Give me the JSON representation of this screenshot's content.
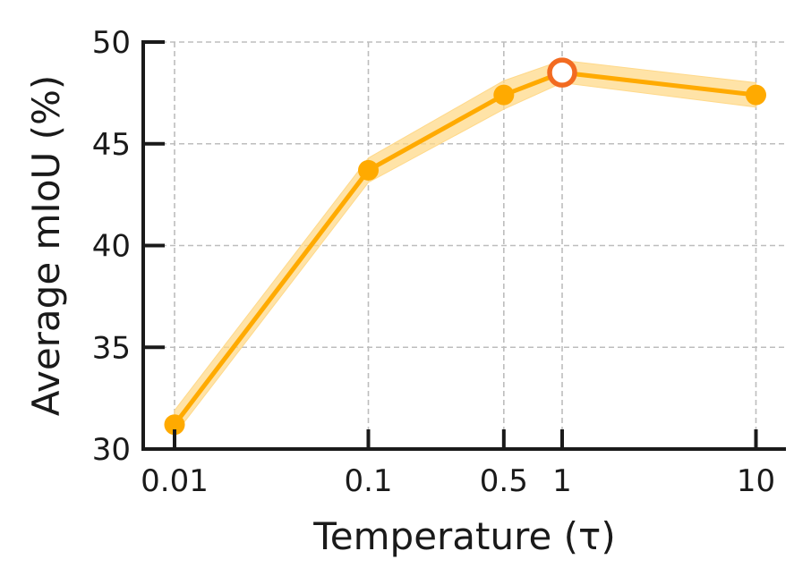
{
  "chart_data": {
    "type": "line",
    "xlabel": "Temperature (τ)",
    "ylabel": "Average mIoU (%)",
    "x_scale": "log",
    "x_ticks": [
      "0.01",
      "0.1",
      "0.5",
      "1",
      "10"
    ],
    "x": [
      0.01,
      0.1,
      0.5,
      1,
      10
    ],
    "y_ticks": [
      "30",
      "35",
      "40",
      "45",
      "50"
    ],
    "ylim": [
      30,
      50
    ],
    "grid": true,
    "series": [
      {
        "values": [
          31.2,
          43.7,
          47.4,
          48.5,
          47.4
        ],
        "band_lower": [
          30.7,
          43.1,
          46.7,
          48.0,
          46.8
        ],
        "band_upper": [
          31.9,
          44.3,
          48.1,
          49.1,
          48.0
        ],
        "color": "#FFAA00",
        "band_color": "#FFD98A",
        "highlight_index": 3,
        "highlight_color": "#F26B21"
      }
    ]
  }
}
